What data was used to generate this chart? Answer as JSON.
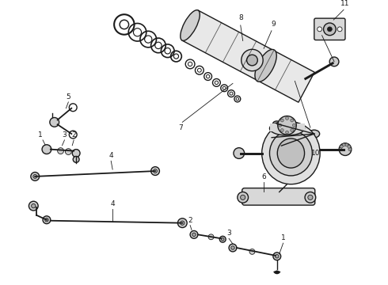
{
  "bg_color": "#ffffff",
  "line_color": "#1a1a1a",
  "fill_light": "#cccccc",
  "fill_med": "#aaaaaa",
  "fill_dark": "#666666",
  "label_color": "#111111",
  "fig_width": 4.9,
  "fig_height": 3.6,
  "dpi": 100,
  "label_fs": 6.5,
  "lw_main": 1.0,
  "lw_thick": 1.4,
  "lw_thin": 0.6
}
